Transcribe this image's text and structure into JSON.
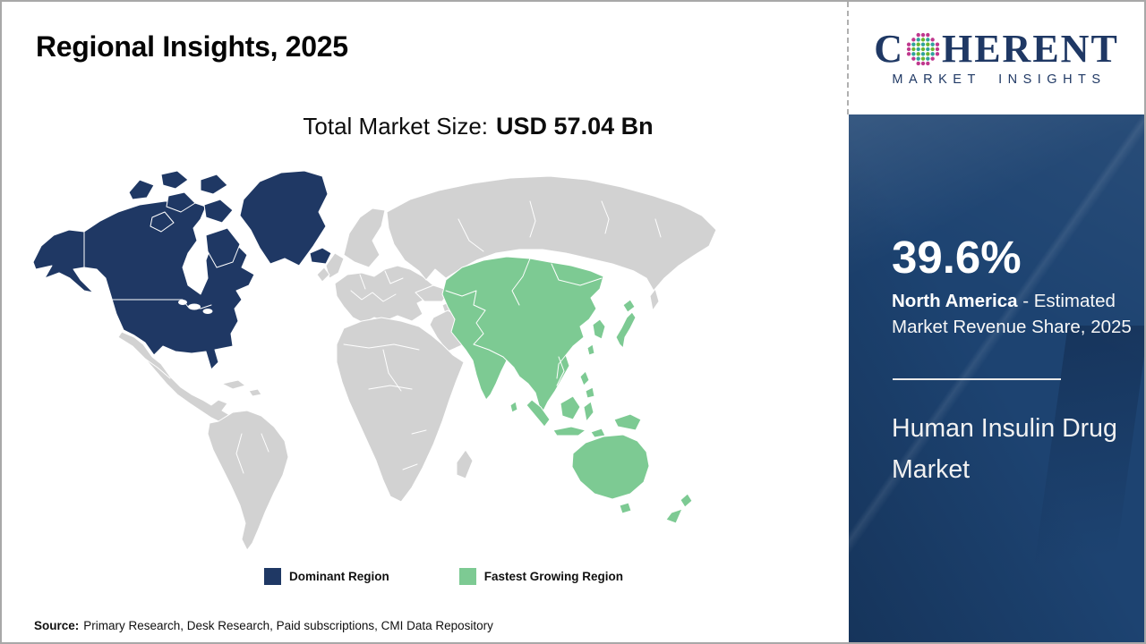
{
  "header": {
    "title": "Regional Insights, 2025"
  },
  "subtitle": {
    "label": "Total Market Size:",
    "value": "USD 57.04 Bn"
  },
  "logo": {
    "c": "C",
    "rest": "HERENT",
    "tagline": "MARKET INSIGHTS"
  },
  "panel": {
    "share_value": "39.6%",
    "region": "North America",
    "share_desc": " - Estimated Market Revenue Share, 2025",
    "market": "Human Insulin Drug Market",
    "bg_color": "#1D4371"
  },
  "legend": {
    "items": [
      {
        "label": "Dominant Region",
        "color": "#1F3864"
      },
      {
        "label": "Fastest Growing Region",
        "color": "#7DCA93"
      }
    ]
  },
  "footer": {
    "label": "Source:",
    "text": "Primary Research, Desk Research, Paid subscriptions, CMI Data Repository"
  },
  "map_data": {
    "type": "choropleth_world_map",
    "title": "Regional Insights, 2025",
    "total_market_size": "USD 57.04 Bn",
    "year": "2025",
    "regions": [
      {
        "name": "North America",
        "classification": "Dominant Region",
        "color": "#1F3864",
        "value": "39.6% estimated market revenue share, 2025"
      },
      {
        "name": "Asia Pacific",
        "classification": "Fastest Growing Region",
        "color": "#7DCA93"
      },
      {
        "name": "Rest of World",
        "classification": "Not highlighted",
        "color": "#D2D2D2"
      }
    ],
    "colors": {
      "ocean": "#FFFFFF",
      "country_border": "#FFFFFF",
      "panel_blue": "#1D4371",
      "brand_navy": "#1F3864"
    }
  }
}
